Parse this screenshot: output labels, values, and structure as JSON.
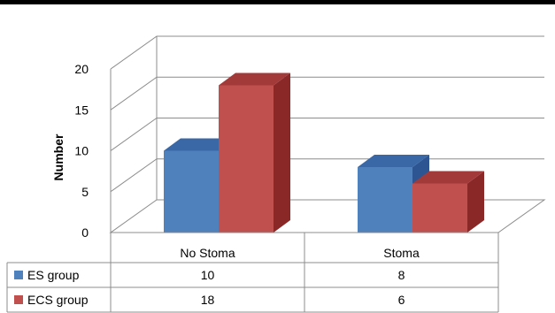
{
  "chart_data": {
    "type": "bar",
    "title": "",
    "xlabel": "",
    "ylabel": "Number",
    "ylim": [
      0,
      20
    ],
    "yticks": [
      "0",
      "5",
      "10",
      "15",
      "20"
    ],
    "categories": [
      "No Stoma",
      "Stoma"
    ],
    "series": [
      {
        "name": "ES group",
        "values": [
          10,
          8
        ],
        "color": "#4F81BD",
        "side_color": "#2D5592",
        "top_color": "#3A68A6"
      },
      {
        "name": "ECS group",
        "values": [
          18,
          6
        ],
        "color": "#C0504D",
        "side_color": "#8A2828",
        "top_color": "#A33A3A"
      }
    ],
    "data_table": [
      [
        "10",
        "8"
      ],
      [
        "18",
        "6"
      ]
    ],
    "grid": true,
    "legend": "data-table",
    "style": "3d-column"
  }
}
